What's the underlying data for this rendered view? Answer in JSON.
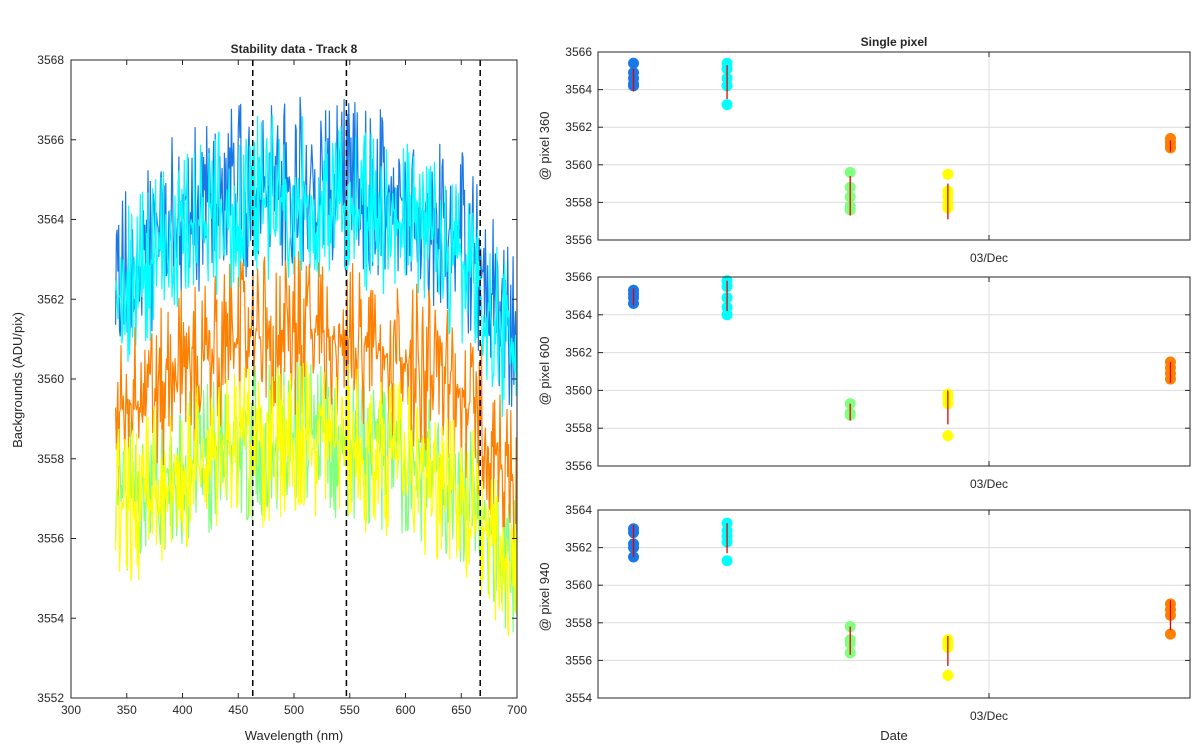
{
  "colors": {
    "blue": "#1a78e6",
    "cyan": "#00ffff",
    "green": "#80ff80",
    "orange": "#ff8000",
    "yellow": "#ffff00",
    "errorbar": "#e60000",
    "vline": "#000000"
  },
  "chart_data": [
    {
      "type": "line",
      "title": "Stability data - Track 8",
      "xlabel": "Wavelength (nm)",
      "ylabel": "Backgrounds (ADU/pix)",
      "xlim": [
        300,
        700
      ],
      "ylim": [
        3552,
        3568
      ],
      "xticks": [
        "300",
        "350",
        "400",
        "450",
        "500",
        "550",
        "600",
        "650",
        "700"
      ],
      "yticks": [
        "3552",
        "3554",
        "3556",
        "3558",
        "3560",
        "3562",
        "3564",
        "3566",
        "3568"
      ],
      "vertical_lines": [
        463,
        547,
        667
      ],
      "grid": false,
      "series": [
        {
          "color": "blue",
          "x": [
            340,
            400,
            460,
            500,
            550,
            600,
            650,
            700
          ],
          "y": [
            3562.5,
            3564.2,
            3564.8,
            3565.0,
            3564.8,
            3564.5,
            3563.5,
            3561.0
          ],
          "noise": 1.6
        },
        {
          "color": "cyan",
          "x": [
            340,
            400,
            460,
            500,
            550,
            600,
            650,
            700
          ],
          "y": [
            3562.0,
            3563.8,
            3564.5,
            3564.6,
            3564.3,
            3563.9,
            3563.0,
            3560.3
          ],
          "noise": 1.5
        },
        {
          "color": "green",
          "x": [
            340,
            400,
            460,
            500,
            550,
            600,
            650,
            700
          ],
          "y": [
            3556.8,
            3557.8,
            3558.4,
            3558.6,
            3558.4,
            3558.0,
            3557.3,
            3555.2
          ],
          "noise": 1.4
        },
        {
          "color": "orange",
          "x": [
            340,
            400,
            460,
            500,
            550,
            600,
            650,
            700
          ],
          "y": [
            3559.0,
            3560.3,
            3561.0,
            3561.2,
            3560.9,
            3560.5,
            3559.7,
            3557.2
          ],
          "noise": 1.5
        },
        {
          "color": "yellow",
          "x": [
            340,
            400,
            460,
            500,
            550,
            600,
            650,
            700
          ],
          "y": [
            3556.6,
            3557.7,
            3558.3,
            3558.5,
            3558.3,
            3557.9,
            3557.1,
            3555.0
          ],
          "noise": 1.5
        }
      ]
    },
    {
      "type": "scatter",
      "title": "Single pixel",
      "ylabel": "@ pixel 360",
      "xtick_label": "03/Dec",
      "ylim": [
        3556,
        3566
      ],
      "yticks": [
        "3556",
        "3558",
        "3560",
        "3562",
        "3564",
        "3566"
      ],
      "grid": true,
      "groups": [
        {
          "color": "blue",
          "pos": 0.06,
          "points": [
            3565.4,
            3564.9,
            3564.6,
            3564.3,
            3564.2
          ],
          "err": [
            3563.9,
            3565.1
          ]
        },
        {
          "color": "cyan",
          "pos": 0.218,
          "points": [
            3565.4,
            3565.1,
            3564.6,
            3564.2,
            3563.2
          ],
          "err": [
            3563.5,
            3565.3
          ]
        },
        {
          "color": "green",
          "pos": 0.426,
          "points": [
            3559.6,
            3558.8,
            3558.3,
            3557.8,
            3557.6
          ],
          "err": [
            3557.3,
            3559.4
          ]
        },
        {
          "color": "yellow",
          "pos": 0.591,
          "points": [
            3559.5,
            3558.6,
            3558.3,
            3557.9,
            3557.7
          ],
          "err": [
            3557.1,
            3559.0
          ]
        },
        {
          "color": "orange",
          "pos": 0.967,
          "points": [
            3561.4,
            3561.2,
            3561.0,
            3560.9
          ],
          "err": [
            3560.7,
            3561.3
          ]
        }
      ]
    },
    {
      "type": "scatter",
      "ylabel": "@ pixel 600",
      "xtick_label": "03/Dec",
      "ylim": [
        3556,
        3566
      ],
      "yticks": [
        "3556",
        "3558",
        "3560",
        "3562",
        "3564",
        "3566"
      ],
      "grid": true,
      "groups": [
        {
          "color": "blue",
          "pos": 0.06,
          "points": [
            3565.3,
            3565.1,
            3564.9,
            3564.6
          ],
          "err": [
            3564.5,
            3565.4
          ]
        },
        {
          "color": "cyan",
          "pos": 0.218,
          "points": [
            3565.8,
            3565.5,
            3564.9,
            3564.4,
            3564.0
          ],
          "err": [
            3564.2,
            3565.8
          ]
        },
        {
          "color": "green",
          "pos": 0.426,
          "points": [
            3559.3,
            3558.8,
            3558.7
          ],
          "err": [
            3558.4,
            3559.3
          ]
        },
        {
          "color": "yellow",
          "pos": 0.591,
          "points": [
            3559.8,
            3559.6,
            3559.3,
            3557.6
          ],
          "err": [
            3558.2,
            3560.0
          ]
        },
        {
          "color": "orange",
          "pos": 0.967,
          "points": [
            3561.5,
            3561.2,
            3560.9,
            3560.6
          ],
          "err": [
            3560.4,
            3561.5
          ]
        }
      ]
    },
    {
      "type": "scatter",
      "xlabel": "Date",
      "ylabel": "@ pixel 940",
      "xtick_label": "03/Dec",
      "ylim": [
        3554,
        3564
      ],
      "yticks": [
        "3554",
        "3556",
        "3558",
        "3560",
        "3562",
        "3564"
      ],
      "grid": true,
      "groups": [
        {
          "color": "blue",
          "pos": 0.06,
          "points": [
            3563.0,
            3562.8,
            3562.2,
            3562.0,
            3561.5
          ],
          "err": [
            3561.5,
            3563.2
          ]
        },
        {
          "color": "cyan",
          "pos": 0.218,
          "points": [
            3563.3,
            3562.9,
            3562.6,
            3562.3,
            3561.3
          ],
          "err": [
            3561.7,
            3563.3
          ]
        },
        {
          "color": "green",
          "pos": 0.426,
          "points": [
            3557.8,
            3557.1,
            3556.9,
            3556.4
          ],
          "err": [
            3556.3,
            3557.8
          ]
        },
        {
          "color": "yellow",
          "pos": 0.591,
          "points": [
            3557.1,
            3556.9,
            3556.7,
            3555.2
          ],
          "err": [
            3555.7,
            3557.3
          ]
        },
        {
          "color": "orange",
          "pos": 0.967,
          "points": [
            3559.0,
            3558.7,
            3558.4,
            3557.4
          ],
          "err": [
            3557.6,
            3559.2
          ]
        }
      ]
    }
  ]
}
